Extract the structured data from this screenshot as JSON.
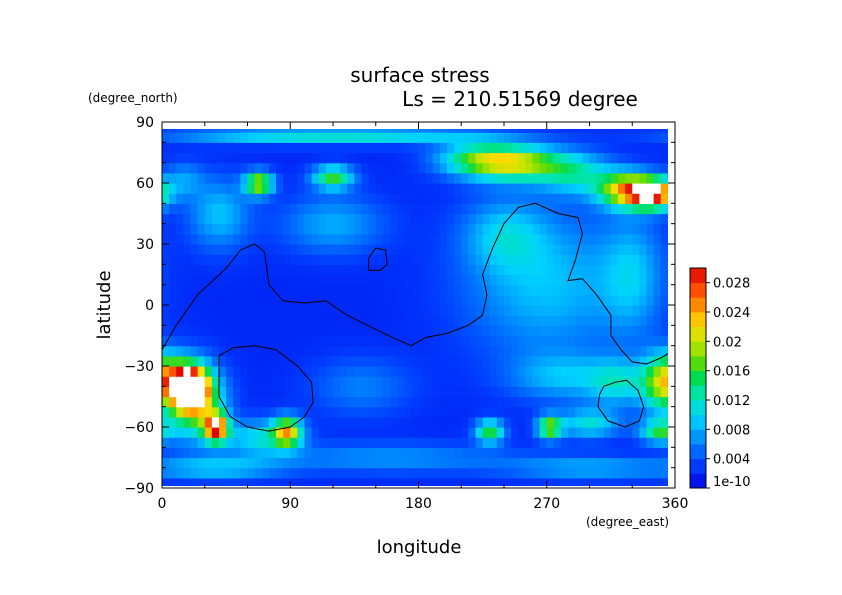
{
  "chart_data": {
    "type": "heatmap",
    "title": "surface stress",
    "subtitle": "Ls = 210.51569 degree",
    "xlabel": "longitude",
    "ylabel": "latitude",
    "x_units": "(degree_east)",
    "y_units": "(degree_north)",
    "xlim": [
      0,
      360
    ],
    "ylim": [
      -90,
      90
    ],
    "x_ticks": [
      0,
      90,
      180,
      270,
      360
    ],
    "y_ticks": [
      -90,
      -60,
      -30,
      0,
      30,
      60,
      90
    ],
    "x_tick_labels": [
      "0",
      "90",
      "180",
      "270",
      "360"
    ],
    "y_tick_labels": [
      "−90",
      "−60",
      "−30",
      "0",
      "30",
      "60",
      "90"
    ],
    "colorbar": {
      "min": 1e-10,
      "max": 0.03,
      "tick_values": [
        1e-10,
        0.004,
        0.008,
        0.012,
        0.016,
        0.02,
        0.024,
        0.028
      ],
      "tick_labels": [
        "1e-10",
        "0.004",
        "0.008",
        "0.012",
        "0.016",
        "0.02",
        "0.024",
        "0.028"
      ]
    },
    "grid": false,
    "legend": "colorbar-right",
    "background_value": 0.002,
    "features": [
      {
        "lon": 250,
        "lat": 70,
        "value": 0.016,
        "sx": 22,
        "sy": 6
      },
      {
        "lon": 220,
        "lat": 72,
        "value": 0.011,
        "sx": 20,
        "sy": 6
      },
      {
        "lon": 290,
        "lat": 65,
        "value": 0.009,
        "sx": 18,
        "sy": 7
      },
      {
        "lon": 345,
        "lat": 55,
        "value": 0.026,
        "sx": 12,
        "sy": 5
      },
      {
        "lon": 325,
        "lat": 57,
        "value": 0.018,
        "sx": 14,
        "sy": 6
      },
      {
        "lon": 68,
        "lat": 60,
        "value": 0.018,
        "sx": 7,
        "sy": 4
      },
      {
        "lon": 120,
        "lat": 63,
        "value": 0.014,
        "sx": 10,
        "sy": 4
      },
      {
        "lon": 80,
        "lat": 84,
        "value": 0.008,
        "sx": 55,
        "sy": 3
      },
      {
        "lon": 170,
        "lat": 84,
        "value": 0.007,
        "sx": 50,
        "sy": 3
      },
      {
        "lon": 40,
        "lat": 45,
        "value": 0.007,
        "sx": 15,
        "sy": 12
      },
      {
        "lon": 120,
        "lat": 40,
        "value": 0.006,
        "sx": 25,
        "sy": 10
      },
      {
        "lon": 15,
        "lat": 62,
        "value": 0.005,
        "sx": 10,
        "sy": 6
      },
      {
        "lon": 270,
        "lat": 10,
        "value": 0.007,
        "sx": 40,
        "sy": 25
      },
      {
        "lon": 240,
        "lat": 35,
        "value": 0.006,
        "sx": 20,
        "sy": 12
      },
      {
        "lon": 330,
        "lat": 15,
        "value": 0.006,
        "sx": 15,
        "sy": 20
      },
      {
        "lon": 20,
        "lat": -40,
        "value": 0.028,
        "sx": 9,
        "sy": 7
      },
      {
        "lon": 38,
        "lat": -60,
        "value": 0.025,
        "sx": 6,
        "sy": 5
      },
      {
        "lon": 22,
        "lat": -47,
        "value": 0.018,
        "sx": 14,
        "sy": 12
      },
      {
        "lon": 5,
        "lat": -35,
        "value": 0.012,
        "sx": 10,
        "sy": 8
      },
      {
        "lon": 88,
        "lat": -62,
        "value": 0.018,
        "sx": 7,
        "sy": 5
      },
      {
        "lon": 70,
        "lat": -65,
        "value": 0.009,
        "sx": 18,
        "sy": 6
      },
      {
        "lon": 230,
        "lat": -62,
        "value": 0.014,
        "sx": 7,
        "sy": 4
      },
      {
        "lon": 272,
        "lat": -60,
        "value": 0.016,
        "sx": 6,
        "sy": 4
      },
      {
        "lon": 300,
        "lat": -58,
        "value": 0.009,
        "sx": 15,
        "sy": 5
      },
      {
        "lon": 350,
        "lat": -62,
        "value": 0.013,
        "sx": 10,
        "sy": 4
      },
      {
        "lon": 350,
        "lat": -38,
        "value": 0.014,
        "sx": 10,
        "sy": 10
      },
      {
        "lon": 320,
        "lat": -38,
        "value": 0.008,
        "sx": 15,
        "sy": 8
      },
      {
        "lon": 280,
        "lat": -35,
        "value": 0.006,
        "sx": 25,
        "sy": 8
      },
      {
        "lon": 160,
        "lat": -75,
        "value": 0.005,
        "sx": 60,
        "sy": 5
      },
      {
        "lon": 300,
        "lat": -80,
        "value": 0.006,
        "sx": 40,
        "sy": 4
      },
      {
        "lon": 40,
        "lat": -80,
        "value": 0.007,
        "sx": 30,
        "sy": 4
      },
      {
        "lon": 140,
        "lat": -40,
        "value": 0.004,
        "sx": 25,
        "sy": 10
      }
    ],
    "contours": [
      {
        "name": "zero-elevation-line-main",
        "points": [
          [
            0,
            -22
          ],
          [
            10,
            -10
          ],
          [
            25,
            5
          ],
          [
            45,
            18
          ],
          [
            55,
            27
          ],
          [
            65,
            30
          ],
          [
            72,
            26
          ],
          [
            75,
            10
          ],
          [
            85,
            2
          ],
          [
            100,
            1
          ],
          [
            115,
            2
          ],
          [
            130,
            -5
          ],
          [
            150,
            -12
          ],
          [
            165,
            -17
          ],
          [
            175,
            -20
          ],
          [
            185,
            -16
          ],
          [
            200,
            -14
          ],
          [
            215,
            -10
          ],
          [
            225,
            -5
          ],
          [
            228,
            5
          ],
          [
            225,
            15
          ],
          [
            232,
            28
          ],
          [
            240,
            40
          ],
          [
            250,
            48
          ],
          [
            262,
            50
          ],
          [
            278,
            45
          ],
          [
            292,
            43
          ],
          [
            295,
            35
          ],
          [
            290,
            22
          ],
          [
            285,
            12
          ],
          [
            295,
            13
          ],
          [
            305,
            5
          ],
          [
            315,
            -5
          ],
          [
            315,
            -15
          ],
          [
            322,
            -22
          ],
          [
            330,
            -28
          ],
          [
            340,
            -29
          ],
          [
            350,
            -26
          ],
          [
            360,
            -22
          ]
        ]
      },
      {
        "name": "zero-elevation-line-hellas",
        "closed": true,
        "points": [
          [
            40,
            -25
          ],
          [
            50,
            -21
          ],
          [
            65,
            -20
          ],
          [
            80,
            -22
          ],
          [
            95,
            -30
          ],
          [
            105,
            -38
          ],
          [
            106,
            -48
          ],
          [
            100,
            -55
          ],
          [
            90,
            -60
          ],
          [
            75,
            -62
          ],
          [
            60,
            -60
          ],
          [
            48,
            -55
          ],
          [
            40,
            -45
          ],
          [
            40,
            -35
          ]
        ]
      },
      {
        "name": "zero-elevation-line-argyre",
        "closed": true,
        "points": [
          [
            310,
            -40
          ],
          [
            318,
            -38
          ],
          [
            326,
            -37
          ],
          [
            334,
            -42
          ],
          [
            338,
            -50
          ],
          [
            335,
            -57
          ],
          [
            325,
            -60
          ],
          [
            313,
            -57
          ],
          [
            306,
            -50
          ],
          [
            307,
            -44
          ]
        ]
      },
      {
        "name": "zero-elevation-line-small",
        "closed": true,
        "points": [
          [
            145,
            23
          ],
          [
            150,
            28
          ],
          [
            157,
            27
          ],
          [
            158,
            20
          ],
          [
            153,
            17
          ],
          [
            145,
            17
          ]
        ]
      }
    ]
  }
}
